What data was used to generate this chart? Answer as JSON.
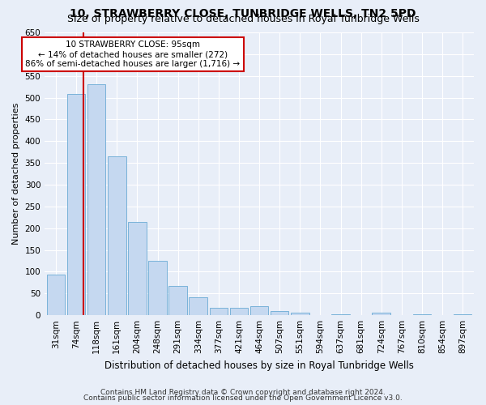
{
  "title": "10, STRAWBERRY CLOSE, TUNBRIDGE WELLS, TN2 5PD",
  "subtitle": "Size of property relative to detached houses in Royal Tunbridge Wells",
  "xlabel": "Distribution of detached houses by size in Royal Tunbridge Wells",
  "ylabel": "Number of detached properties",
  "footnote1": "Contains HM Land Registry data © Crown copyright and database right 2024.",
  "footnote2": "Contains public sector information licensed under the Open Government Licence v3.0.",
  "bin_labels": [
    "31sqm",
    "74sqm",
    "118sqm",
    "161sqm",
    "204sqm",
    "248sqm",
    "291sqm",
    "334sqm",
    "377sqm",
    "421sqm",
    "464sqm",
    "507sqm",
    "551sqm",
    "594sqm",
    "637sqm",
    "681sqm",
    "724sqm",
    "767sqm",
    "810sqm",
    "854sqm",
    "897sqm"
  ],
  "bar_heights": [
    93,
    508,
    530,
    365,
    215,
    125,
    68,
    42,
    18,
    18,
    20,
    10,
    6,
    0,
    3,
    0,
    5,
    0,
    3,
    0,
    3
  ],
  "bar_color": "#c5d8f0",
  "bar_edge_color": "#6aaad4",
  "red_line_color": "#cc0000",
  "red_line_x": 1.35,
  "annotation_text": "10 STRAWBERRY CLOSE: 95sqm\n← 14% of detached houses are smaller (272)\n86% of semi-detached houses are larger (1,716) →",
  "annotation_box_color": "#ffffff",
  "annotation_box_edge": "#cc0000",
  "ylim": [
    0,
    650
  ],
  "yticks": [
    0,
    50,
    100,
    150,
    200,
    250,
    300,
    350,
    400,
    450,
    500,
    550,
    600,
    650
  ],
  "figure_bg_color": "#e8eef8",
  "plot_bg_color": "#e8eef8",
  "grid_color": "#ffffff",
  "title_fontsize": 10,
  "subtitle_fontsize": 9,
  "xlabel_fontsize": 8.5,
  "ylabel_fontsize": 8,
  "tick_fontsize": 7.5,
  "annotation_fontsize": 7.5,
  "footnote_fontsize": 6.5
}
